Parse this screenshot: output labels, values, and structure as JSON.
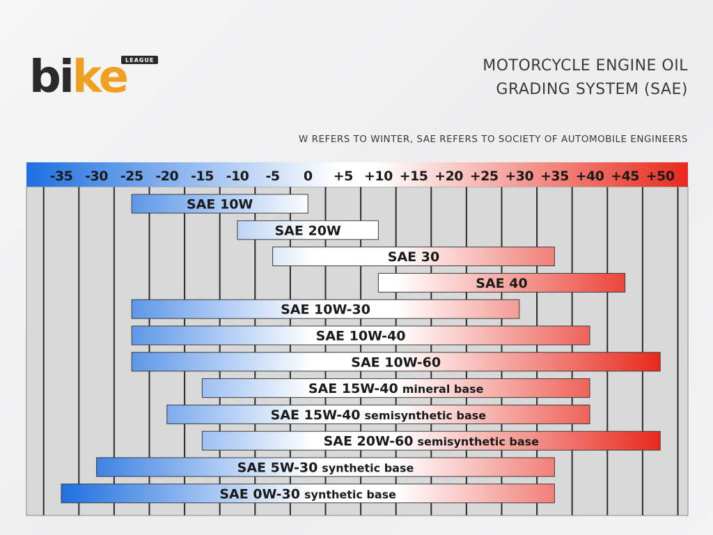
{
  "brand": {
    "logo_main_part1": "bi",
    "logo_main_part2": "ke",
    "logo_badge": "LEAGUE"
  },
  "header": {
    "title_line1": "MOTORCYCLE ENGINE OIL",
    "title_line2": "GRADING SYSTEM (SAE)",
    "subtitle": "W REFERS TO WINTER, SAE REFERS TO SOCIETY OF AUTOMOBILE ENGINEERS"
  },
  "colors": {
    "cold": "#1e6fe0",
    "neutral": "#ffffff",
    "hot": "#e8291c",
    "grid_bg": "#d9d9d9",
    "grid_line": "#2b2b2b"
  },
  "chart_data": {
    "type": "bar",
    "orientation": "horizontal range",
    "x_ticks": [
      "-35",
      "-30",
      "-25",
      "-20",
      "-15",
      "-10",
      "-5",
      "0",
      "+5",
      "+10",
      "+15",
      "+20",
      "+25",
      "+30",
      "+35",
      "+40",
      "+45",
      "+50"
    ],
    "x_values": [
      -35,
      -30,
      -25,
      -20,
      -15,
      -10,
      -5,
      0,
      5,
      10,
      15,
      20,
      25,
      30,
      35,
      40,
      45,
      50
    ],
    "xlim": [
      -35,
      50
    ],
    "grid": true,
    "bars": [
      {
        "label": "SAE 10W",
        "suffix": "",
        "start": -25,
        "end": 0
      },
      {
        "label": "SAE 20W",
        "suffix": "",
        "start": -10,
        "end": 10
      },
      {
        "label": "SAE 30",
        "suffix": "",
        "start": -5,
        "end": 35
      },
      {
        "label": "SAE 40",
        "suffix": "",
        "start": 10,
        "end": 45
      },
      {
        "label": "SAE 10W-30",
        "suffix": "",
        "start": -25,
        "end": 30
      },
      {
        "label": "SAE 10W-40",
        "suffix": "",
        "start": -25,
        "end": 40
      },
      {
        "label": "SAE 10W-60",
        "suffix": "",
        "start": -25,
        "end": 50
      },
      {
        "label": "SAE 15W-40",
        "suffix": "mineral base",
        "start": -15,
        "end": 40
      },
      {
        "label": "SAE 15W-40",
        "suffix": "semisynthetic base",
        "start": -20,
        "end": 40
      },
      {
        "label": "SAE 20W-60",
        "suffix": "semisynthetic base",
        "start": -15,
        "end": 50
      },
      {
        "label": "SAE 5W-30",
        "suffix": "synthetic base",
        "start": -30,
        "end": 35
      },
      {
        "label": "SAE 0W-30",
        "suffix": "synthetic base",
        "start": -35,
        "end": 35
      }
    ]
  }
}
